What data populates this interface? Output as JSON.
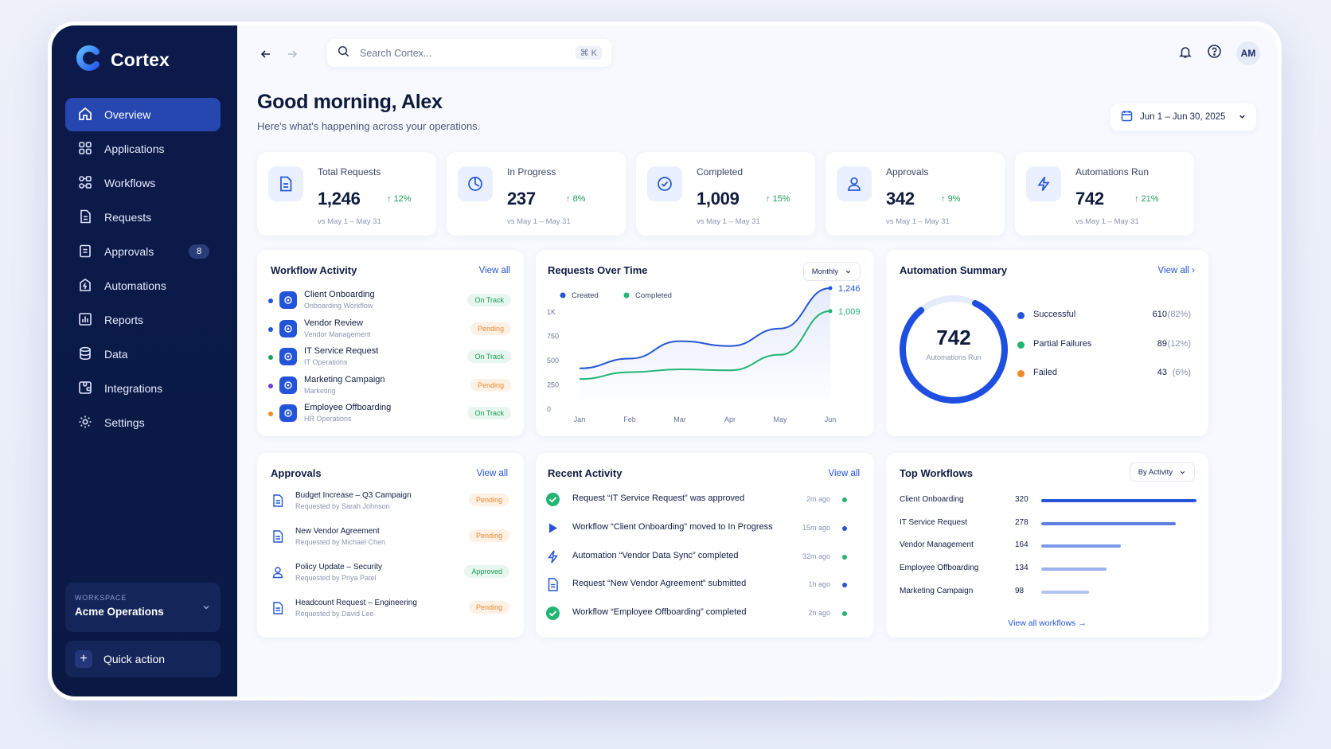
{
  "app": {
    "name": "Cortex"
  },
  "sidebar": {
    "items": [
      {
        "label": "Overview"
      },
      {
        "label": "Applications"
      },
      {
        "label": "Workflows"
      },
      {
        "label": "Requests"
      },
      {
        "label": "Approvals",
        "badge": "8"
      },
      {
        "label": "Automations"
      },
      {
        "label": "Reports"
      },
      {
        "label": "Data"
      },
      {
        "label": "Integrations"
      },
      {
        "label": "Settings"
      }
    ],
    "workspace": {
      "label": "WORKSPACE",
      "name": "Acme Operations"
    },
    "quick_action": "Quick action"
  },
  "topbar": {
    "search_placeholder": "Search Cortex...",
    "shortcut": "⌘ K",
    "avatar": "AM"
  },
  "header": {
    "greeting": "Good morning, Alex",
    "subtitle": "Here's what's happening across your operations.",
    "date_range": "Jun 1 – Jun 30, 2025"
  },
  "stats": [
    {
      "label": "Total Requests",
      "value": "1,246",
      "delta": "12%",
      "sub": "vs May 1 – May 31"
    },
    {
      "label": "In Progress",
      "value": "237",
      "delta": "8%",
      "sub": "vs May 1 – May 31"
    },
    {
      "label": "Completed",
      "value": "1,009",
      "delta": "15%",
      "sub": "vs May 1 – May 31"
    },
    {
      "label": "Approvals",
      "value": "342",
      "delta": "9%",
      "sub": "vs May 1 – May 31"
    },
    {
      "label": "Automations Run",
      "value": "742",
      "delta": "21%",
      "sub": "vs May 1 – May 31"
    }
  ],
  "workflow_activity": {
    "title": "Workflow Activity",
    "link": "View all",
    "items": [
      {
        "name": "Client Onboarding",
        "sub": "Onboarding Workflow",
        "status": "On Track",
        "dot": "#2456d6"
      },
      {
        "name": "Vendor Review",
        "sub": "Vendor Management",
        "status": "Pending",
        "dot": "#2456d6"
      },
      {
        "name": "IT Service Request",
        "sub": "IT Operations",
        "status": "On Track",
        "dot": "#1f9d5a"
      },
      {
        "name": "Marketing Campaign",
        "sub": "Marketing",
        "status": "Pending",
        "dot": "#6b3fd1"
      },
      {
        "name": "Employee Offboarding",
        "sub": "HR Operations",
        "status": "On Track",
        "dot": "#f08a2a"
      }
    ]
  },
  "requests_chart": {
    "title": "Requests Over Time",
    "select": "Monthly"
  },
  "chart_data": {
    "type": "line",
    "title": "Requests Over Time",
    "categories": [
      "Jan",
      "Feb",
      "Mar",
      "Apr",
      "May",
      "Jun"
    ],
    "yticks": [
      "0",
      "250",
      "500",
      "750",
      "1K"
    ],
    "ylim": [
      0,
      1000
    ],
    "series": [
      {
        "name": "Created",
        "color": "#2456d6",
        "values": [
          420,
          520,
          700,
          650,
          830,
          1246
        ],
        "end_label": "1,246"
      },
      {
        "name": "Completed",
        "color": "#22b573",
        "values": [
          310,
          380,
          410,
          400,
          560,
          1009
        ],
        "end_label": "1,009"
      }
    ],
    "grid": false,
    "legend": "top-left"
  },
  "automation_summary": {
    "title": "Automation Summary",
    "link": "View all",
    "total": "742",
    "total_label": "Automations Run",
    "items": [
      {
        "name": "Successful",
        "value": "610",
        "pct": "(82%)",
        "color": "#2456d6"
      },
      {
        "name": "Partial Failures",
        "value": "89",
        "pct": "(12%)",
        "color": "#22b573"
      },
      {
        "name": "Failed",
        "value": "43",
        "pct": "(6%)",
        "color": "#f08a2a"
      }
    ],
    "success_fraction": 0.82
  },
  "approvals": {
    "title": "Approvals",
    "link": "View all",
    "items": [
      {
        "name": "Budget Increase – Q3 Campaign",
        "sub": "Requested by Sarah Johnson",
        "status": "Pending"
      },
      {
        "name": "New Vendor Agreement",
        "sub": "Requested by Michael Chen",
        "status": "Pending"
      },
      {
        "name": "Policy Update – Security",
        "sub": "Requested by Priya Patel",
        "status": "Approved"
      },
      {
        "name": "Headcount Request – Engineering",
        "sub": "Requested by David Lee",
        "status": "Pending"
      }
    ]
  },
  "recent_activity": {
    "title": "Recent Activity",
    "link": "View all",
    "items": [
      {
        "text": "Request “IT Service Request” was approved",
        "time": "2m ago",
        "icon": "check-circle-icon",
        "dot": "#22b573"
      },
      {
        "text": "Workflow “Client Onboarding” moved to In Progress",
        "time": "15m ago",
        "icon": "play-icon",
        "dot": "#2456d6"
      },
      {
        "text": "Automation “Vendor Data Sync” completed",
        "time": "32m ago",
        "icon": "bolt-icon",
        "dot": "#22b573"
      },
      {
        "text": "Request “New Vendor Agreement” submitted",
        "time": "1h ago",
        "icon": "document-icon",
        "dot": "#2456d6"
      },
      {
        "text": "Workflow “Employee Offboarding” completed",
        "time": "2h ago",
        "icon": "check-circle-icon",
        "dot": "#22b573"
      }
    ]
  },
  "top_workflows": {
    "title": "Top Workflows",
    "select": "By Activity",
    "items": [
      {
        "name": "Client Onboarding",
        "value": "320"
      },
      {
        "name": "IT Service Request",
        "value": "278"
      },
      {
        "name": "Vendor Management",
        "value": "164"
      },
      {
        "name": "Employee Offboarding",
        "value": "134"
      },
      {
        "name": "Marketing Campaign",
        "value": "98"
      }
    ],
    "link": "View all workflows"
  }
}
